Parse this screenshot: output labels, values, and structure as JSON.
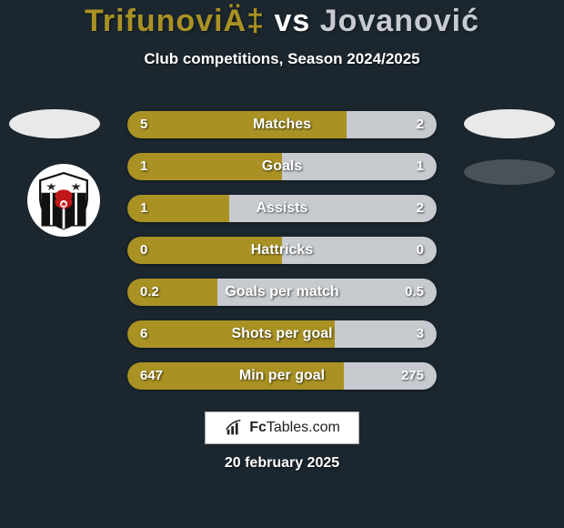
{
  "background_color": "#1b262f",
  "title": {
    "parts": [
      {
        "text": "TrifunoviÄ‡",
        "color": "#a99223"
      },
      {
        "text": " vs ",
        "color": "#ffffff"
      },
      {
        "text": "Jovanović",
        "color": "#c7cbcf"
      }
    ],
    "fontsize": 34
  },
  "subtitle": "Club competitions, Season 2024/2025",
  "subtitle_fontsize": 17,
  "colors": {
    "left_bar": "#a99223",
    "right_bar": "#c7cbcf",
    "bar_bg": "#2a343c",
    "text": "#ffffff"
  },
  "head_ellipse_color": "#e9e9e9",
  "crest_right_shadow_color": "#495258",
  "bars": [
    {
      "label": "Matches",
      "left": "5",
      "right": "2",
      "left_pct": 71,
      "right_pct": 29
    },
    {
      "label": "Goals",
      "left": "1",
      "right": "1",
      "left_pct": 50,
      "right_pct": 50
    },
    {
      "label": "Assists",
      "left": "1",
      "right": "2",
      "left_pct": 33,
      "right_pct": 67
    },
    {
      "label": "Hattricks",
      "left": "0",
      "right": "0",
      "left_pct": 50,
      "right_pct": 50
    },
    {
      "label": "Goals per match",
      "left": "0.2",
      "right": "0.5",
      "left_pct": 29,
      "right_pct": 71
    },
    {
      "label": "Shots per goal",
      "left": "6",
      "right": "3",
      "left_pct": 67,
      "right_pct": 33
    },
    {
      "label": "Min per goal",
      "left": "647",
      "right": "275",
      "left_pct": 70,
      "right_pct": 30
    }
  ],
  "brand": {
    "prefix": "Fc",
    "suffix": "Tables.com"
  },
  "date": "20 february 2025"
}
